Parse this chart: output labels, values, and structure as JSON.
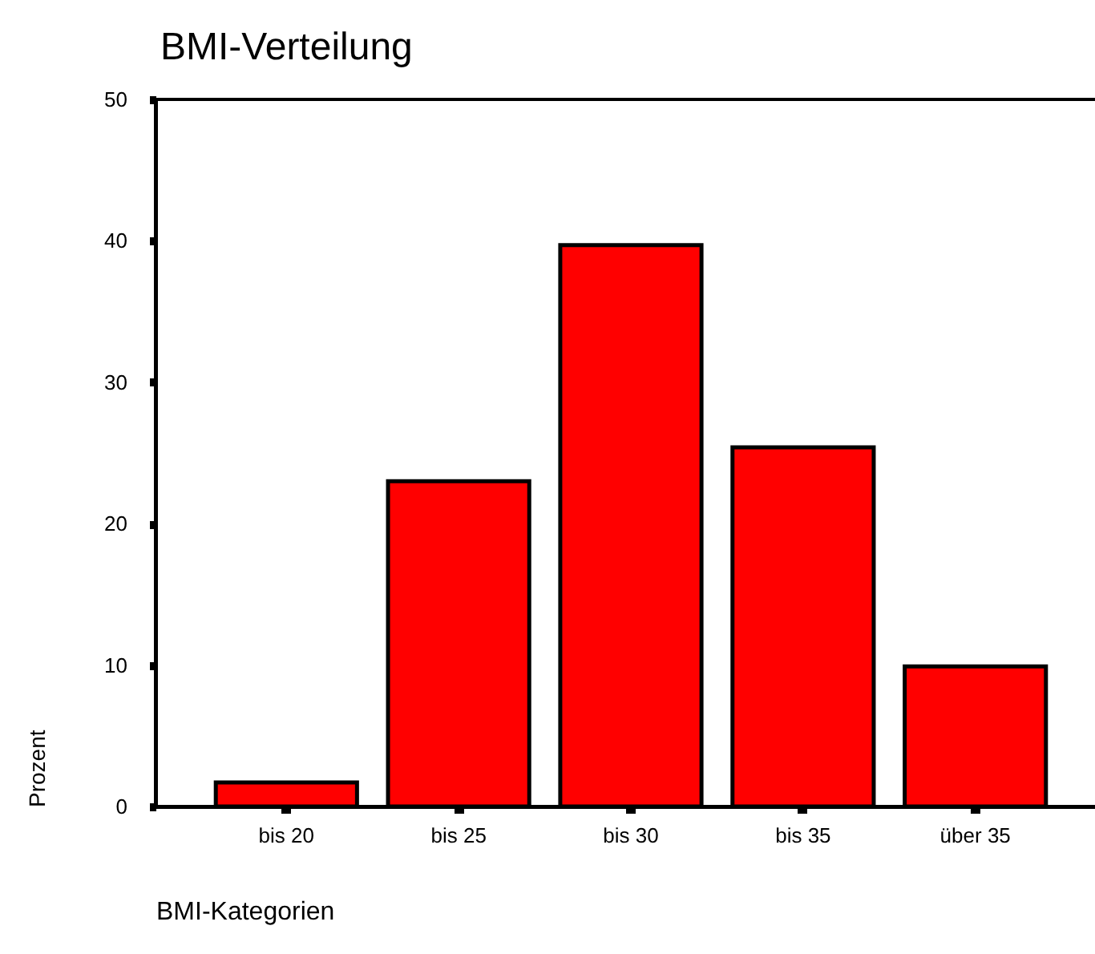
{
  "chart_data": {
    "type": "bar",
    "title": "BMI-Verteilung",
    "xlabel": "BMI-Kategorien",
    "ylabel": "Prozent",
    "categories": [
      "bis 20",
      "bis 25",
      "bis 30",
      "bis 35",
      "über 35"
    ],
    "values": [
      1.7,
      23.0,
      39.7,
      25.4,
      9.9
    ],
    "color": "#ff0000",
    "ylim": [
      0,
      50
    ],
    "yticks": [
      0,
      10,
      20,
      30,
      40,
      50
    ]
  }
}
